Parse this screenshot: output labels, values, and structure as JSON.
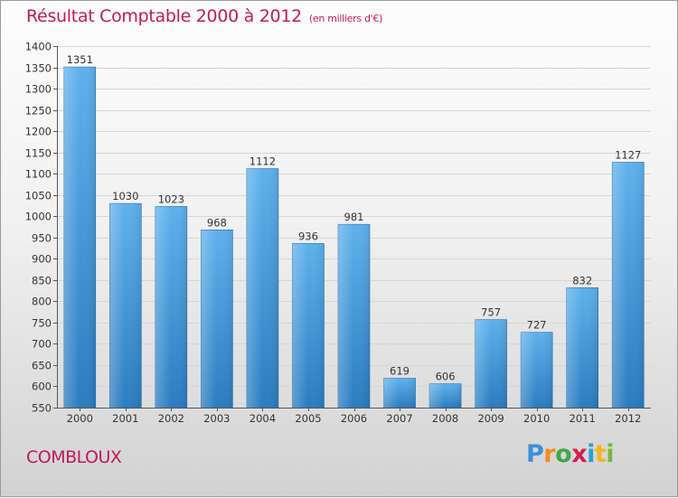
{
  "header": {
    "title": "Résultat Comptable 2000 à 2012",
    "subtitle": "(en milliers d'€)"
  },
  "footer": {
    "commune": "COMBLOUX",
    "logo_text": "Proxiti"
  },
  "colors": {
    "accent": "#c2185b",
    "bar_top": "#5eb1ec",
    "bar_bottom": "#2a7cc0"
  },
  "chart_data": {
    "type": "bar",
    "title": "Résultat Comptable 2000 à 2012",
    "subtitle": "(en milliers d'€)",
    "categories": [
      "2000",
      "2001",
      "2002",
      "2003",
      "2004",
      "2005",
      "2006",
      "2007",
      "2008",
      "2009",
      "2010",
      "2011",
      "2012"
    ],
    "values": [
      1351,
      1030,
      1023,
      968,
      1112,
      936,
      981,
      619,
      606,
      757,
      727,
      832,
      1127
    ],
    "ylim": [
      550,
      1400
    ],
    "yticks": [
      550,
      600,
      650,
      700,
      750,
      800,
      850,
      900,
      950,
      1000,
      1050,
      1100,
      1150,
      1200,
      1250,
      1300,
      1350,
      1400
    ],
    "xlabel": "",
    "ylabel": "",
    "grid": true
  }
}
